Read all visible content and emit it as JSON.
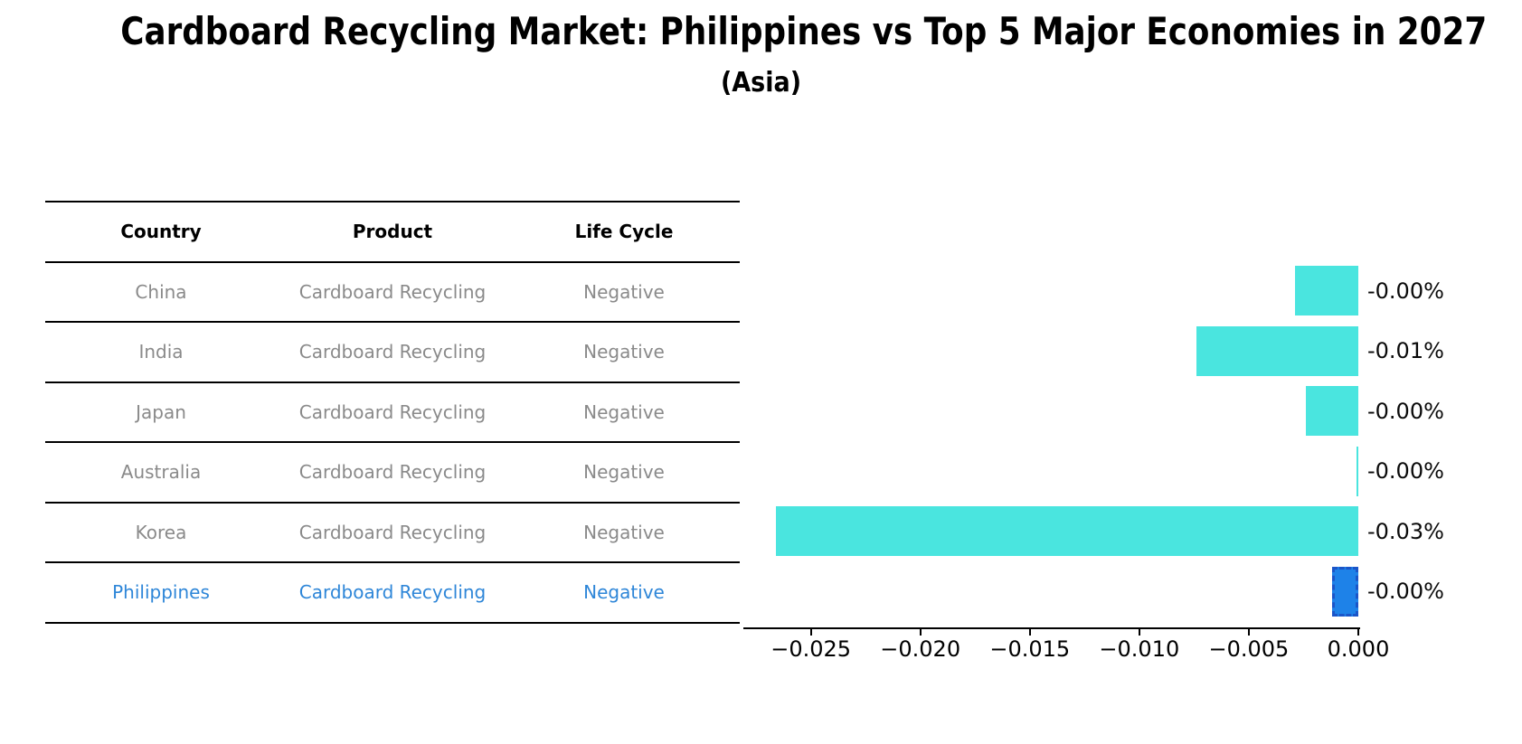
{
  "title": "Cardboard Recycling Market: Philippines vs Top 5 Major Economies in 2027",
  "subtitle": "(Asia)",
  "table": {
    "headers": [
      "Country",
      "Product",
      "Life Cycle"
    ],
    "rows": [
      {
        "country": "China",
        "product": "Cardboard Recycling",
        "life_cycle": "Negative",
        "highlight": false
      },
      {
        "country": "India",
        "product": "Cardboard Recycling",
        "life_cycle": "Negative",
        "highlight": false
      },
      {
        "country": "Japan",
        "product": "Cardboard Recycling",
        "life_cycle": "Negative",
        "highlight": false
      },
      {
        "country": "Australia",
        "product": "Cardboard Recycling",
        "life_cycle": "Negative",
        "highlight": false
      },
      {
        "country": "Korea",
        "product": "Cardboard Recycling",
        "life_cycle": "Negative",
        "highlight": false
      },
      {
        "country": "Philippines",
        "product": "Cardboard Recycling",
        "life_cycle": "Negative",
        "highlight": true
      }
    ]
  },
  "chart_data": {
    "type": "bar",
    "orientation": "horizontal",
    "title": "Cardboard Recycling Market: Philippines vs Top 5 Major Economies in 2027",
    "subtitle": "(Asia)",
    "categories": [
      "China",
      "India",
      "Japan",
      "Australia",
      "Korea",
      "Philippines"
    ],
    "values": [
      -0.0029,
      -0.0074,
      -0.0024,
      -0.0001,
      -0.0266,
      -0.0012
    ],
    "bar_labels": [
      "-0.00%",
      "-0.01%",
      "-0.00%",
      "-0.00%",
      "-0.03%",
      "-0.00%"
    ],
    "unit": "percent",
    "xlabel": "",
    "ylabel": "",
    "xlim": [
      -0.028,
      0
    ],
    "x_ticks": [
      {
        "value": -0.025,
        "label": "−0.025"
      },
      {
        "value": -0.02,
        "label": "−0.020"
      },
      {
        "value": -0.015,
        "label": "−0.015"
      },
      {
        "value": -0.01,
        "label": "−0.010"
      },
      {
        "value": -0.005,
        "label": "−0.005"
      },
      {
        "value": 0.0,
        "label": "0.000"
      }
    ],
    "grid": false,
    "legend": false,
    "bar_color": "#4ae5df",
    "highlight_index": 5,
    "highlight_color": "#1e82e8",
    "highlight_border_color": "#1b55c8",
    "highlight_border_style": "dashed"
  }
}
